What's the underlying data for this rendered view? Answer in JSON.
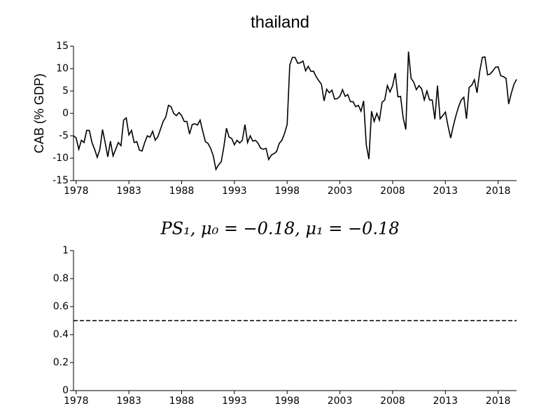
{
  "chart_data": [
    {
      "type": "line",
      "title": "thailand",
      "ylabel": "CAB (% GDP)",
      "color": "#000000",
      "x": [
        1977.75,
        1978,
        1978.25,
        1978.5,
        1978.75,
        1979,
        1979.25,
        1979.5,
        1979.75,
        1980,
        1980.25,
        1980.5,
        1980.75,
        1981,
        1981.25,
        1981.5,
        1981.75,
        1982,
        1982.25,
        1982.5,
        1982.75,
        1983,
        1983.25,
        1983.5,
        1983.75,
        1984,
        1984.25,
        1984.5,
        1984.75,
        1985,
        1985.25,
        1985.5,
        1985.75,
        1986,
        1986.25,
        1986.5,
        1986.75,
        1987,
        1987.25,
        1987.5,
        1987.75,
        1988,
        1988.25,
        1988.5,
        1988.75,
        1989,
        1989.25,
        1989.5,
        1989.75,
        1990,
        1990.25,
        1990.5,
        1990.75,
        1991,
        1991.25,
        1991.5,
        1991.75,
        1992,
        1992.25,
        1992.5,
        1992.75,
        1993,
        1993.25,
        1993.5,
        1993.75,
        1994,
        1994.25,
        1994.5,
        1994.75,
        1995,
        1995.25,
        1995.5,
        1995.75,
        1996,
        1996.25,
        1996.5,
        1996.75,
        1997,
        1997.25,
        1997.5,
        1997.75,
        1998,
        1998.25,
        1998.5,
        1998.75,
        1999,
        1999.25,
        1999.5,
        1999.75,
        2000,
        2000.25,
        2000.5,
        2000.75,
        2001,
        2001.25,
        2001.5,
        2001.75,
        2002,
        2002.25,
        2002.5,
        2002.75,
        2003,
        2003.25,
        2003.5,
        2003.75,
        2004,
        2004.25,
        2004.5,
        2004.75,
        2005,
        2005.25,
        2005.5,
        2005.75,
        2006,
        2006.25,
        2006.5,
        2006.75,
        2007,
        2007.25,
        2007.5,
        2007.75,
        2008,
        2008.25,
        2008.5,
        2008.75,
        2009,
        2009.25,
        2009.5,
        2009.75,
        2010,
        2010.25,
        2010.5,
        2010.75,
        2011,
        2011.25,
        2011.5,
        2011.75,
        2012,
        2012.25,
        2012.5,
        2012.75,
        2013,
        2013.25,
        2013.5,
        2013.75,
        2014,
        2014.25,
        2014.5,
        2014.75,
        2015,
        2015.25,
        2015.5,
        2015.75,
        2016,
        2016.25,
        2016.5,
        2016.75,
        2017,
        2017.25,
        2017.5,
        2017.75,
        2018,
        2018.25,
        2018.5,
        2018.75,
        2019,
        2019.25,
        2019.5,
        2019.75
      ],
      "values": [
        -5,
        -5.5,
        -8,
        -6,
        -6.5,
        -3.8,
        -3.8,
        -6.5,
        -8,
        -9.8,
        -8,
        -3.6,
        -6.5,
        -9.7,
        -6.2,
        -9.5,
        -8,
        -6.5,
        -7.2,
        -1.5,
        -1,
        -4.8,
        -3.8,
        -6.5,
        -6.3,
        -8.2,
        -8.4,
        -6.5,
        -5,
        -5.3,
        -4,
        -6,
        -5.2,
        -3.5,
        -1.8,
        -0.8,
        1.8,
        1.5,
        0,
        -0.5,
        0.2,
        -0.5,
        -1.8,
        -1.8,
        -4.6,
        -2.5,
        -2.3,
        -2.6,
        -1.5,
        -4,
        -6.3,
        -6.7,
        -7.8,
        -9.5,
        -12.5,
        -11.5,
        -10.8,
        -7.5,
        -3.3,
        -5.3,
        -5.6,
        -7,
        -6,
        -6.6,
        -6,
        -2.5,
        -6.5,
        -5,
        -6.2,
        -6,
        -6.7,
        -7.8,
        -8,
        -7.8,
        -10.3,
        -9.3,
        -9,
        -8.5,
        -6.7,
        -6,
        -4.5,
        -2.5,
        10.8,
        12.5,
        12.5,
        11.2,
        11.3,
        11.7,
        9.5,
        10.5,
        9.4,
        9.4,
        8.2,
        7.3,
        6.5,
        2.8,
        5.4,
        4.6,
        5.2,
        3.2,
        3.3,
        3.8,
        5.3,
        3.8,
        4.2,
        2.6,
        2.6,
        1.5,
        1.8,
        0.5,
        2.8,
        -7,
        -10.2,
        0.5,
        -1.8,
        0,
        -1.5,
        2.5,
        3,
        6.2,
        4.8,
        6.2,
        9,
        3.7,
        3.8,
        -1,
        -3.6,
        13.8,
        7.8,
        7,
        5.3,
        6.2,
        5.5,
        3,
        5,
        3,
        3,
        -1.3,
        6.2,
        -1.2,
        -0.5,
        0.3,
        -2.8,
        -5.5,
        -2.8,
        -0.5,
        1.5,
        3,
        3.6,
        -1.2,
        5.8,
        6.3,
        7.5,
        4.6,
        9.3,
        12.5,
        12.6,
        8.6,
        8.8,
        9.5,
        10.3,
        10.4,
        8.4,
        8.2,
        7.8,
        2.1,
        4.5,
        6.5,
        7.6
      ],
      "xlim": [
        1977.75,
        2019.75
      ],
      "xticks": [
        1978,
        1983,
        1988,
        1993,
        1998,
        2003,
        2008,
        2013,
        2018
      ],
      "ylim": [
        -15,
        15
      ],
      "yticks": [
        -15,
        -10,
        -5,
        0,
        5,
        10,
        15
      ]
    },
    {
      "type": "line",
      "title": "PS₁, μ₀ = −0.18, μ₁ = −0.18",
      "color": "#000000",
      "linestyle": "dashed",
      "x": [
        1977.75,
        2019.75
      ],
      "values": [
        0.5,
        0.5
      ],
      "xlim": [
        1977.75,
        2019.75
      ],
      "xticks": [
        1978,
        1983,
        1988,
        1993,
        1998,
        2003,
        2008,
        2013,
        2018
      ],
      "ylim": [
        0,
        1
      ],
      "yticks": [
        0,
        0.2,
        0.4,
        0.6,
        0.8,
        1
      ]
    }
  ]
}
